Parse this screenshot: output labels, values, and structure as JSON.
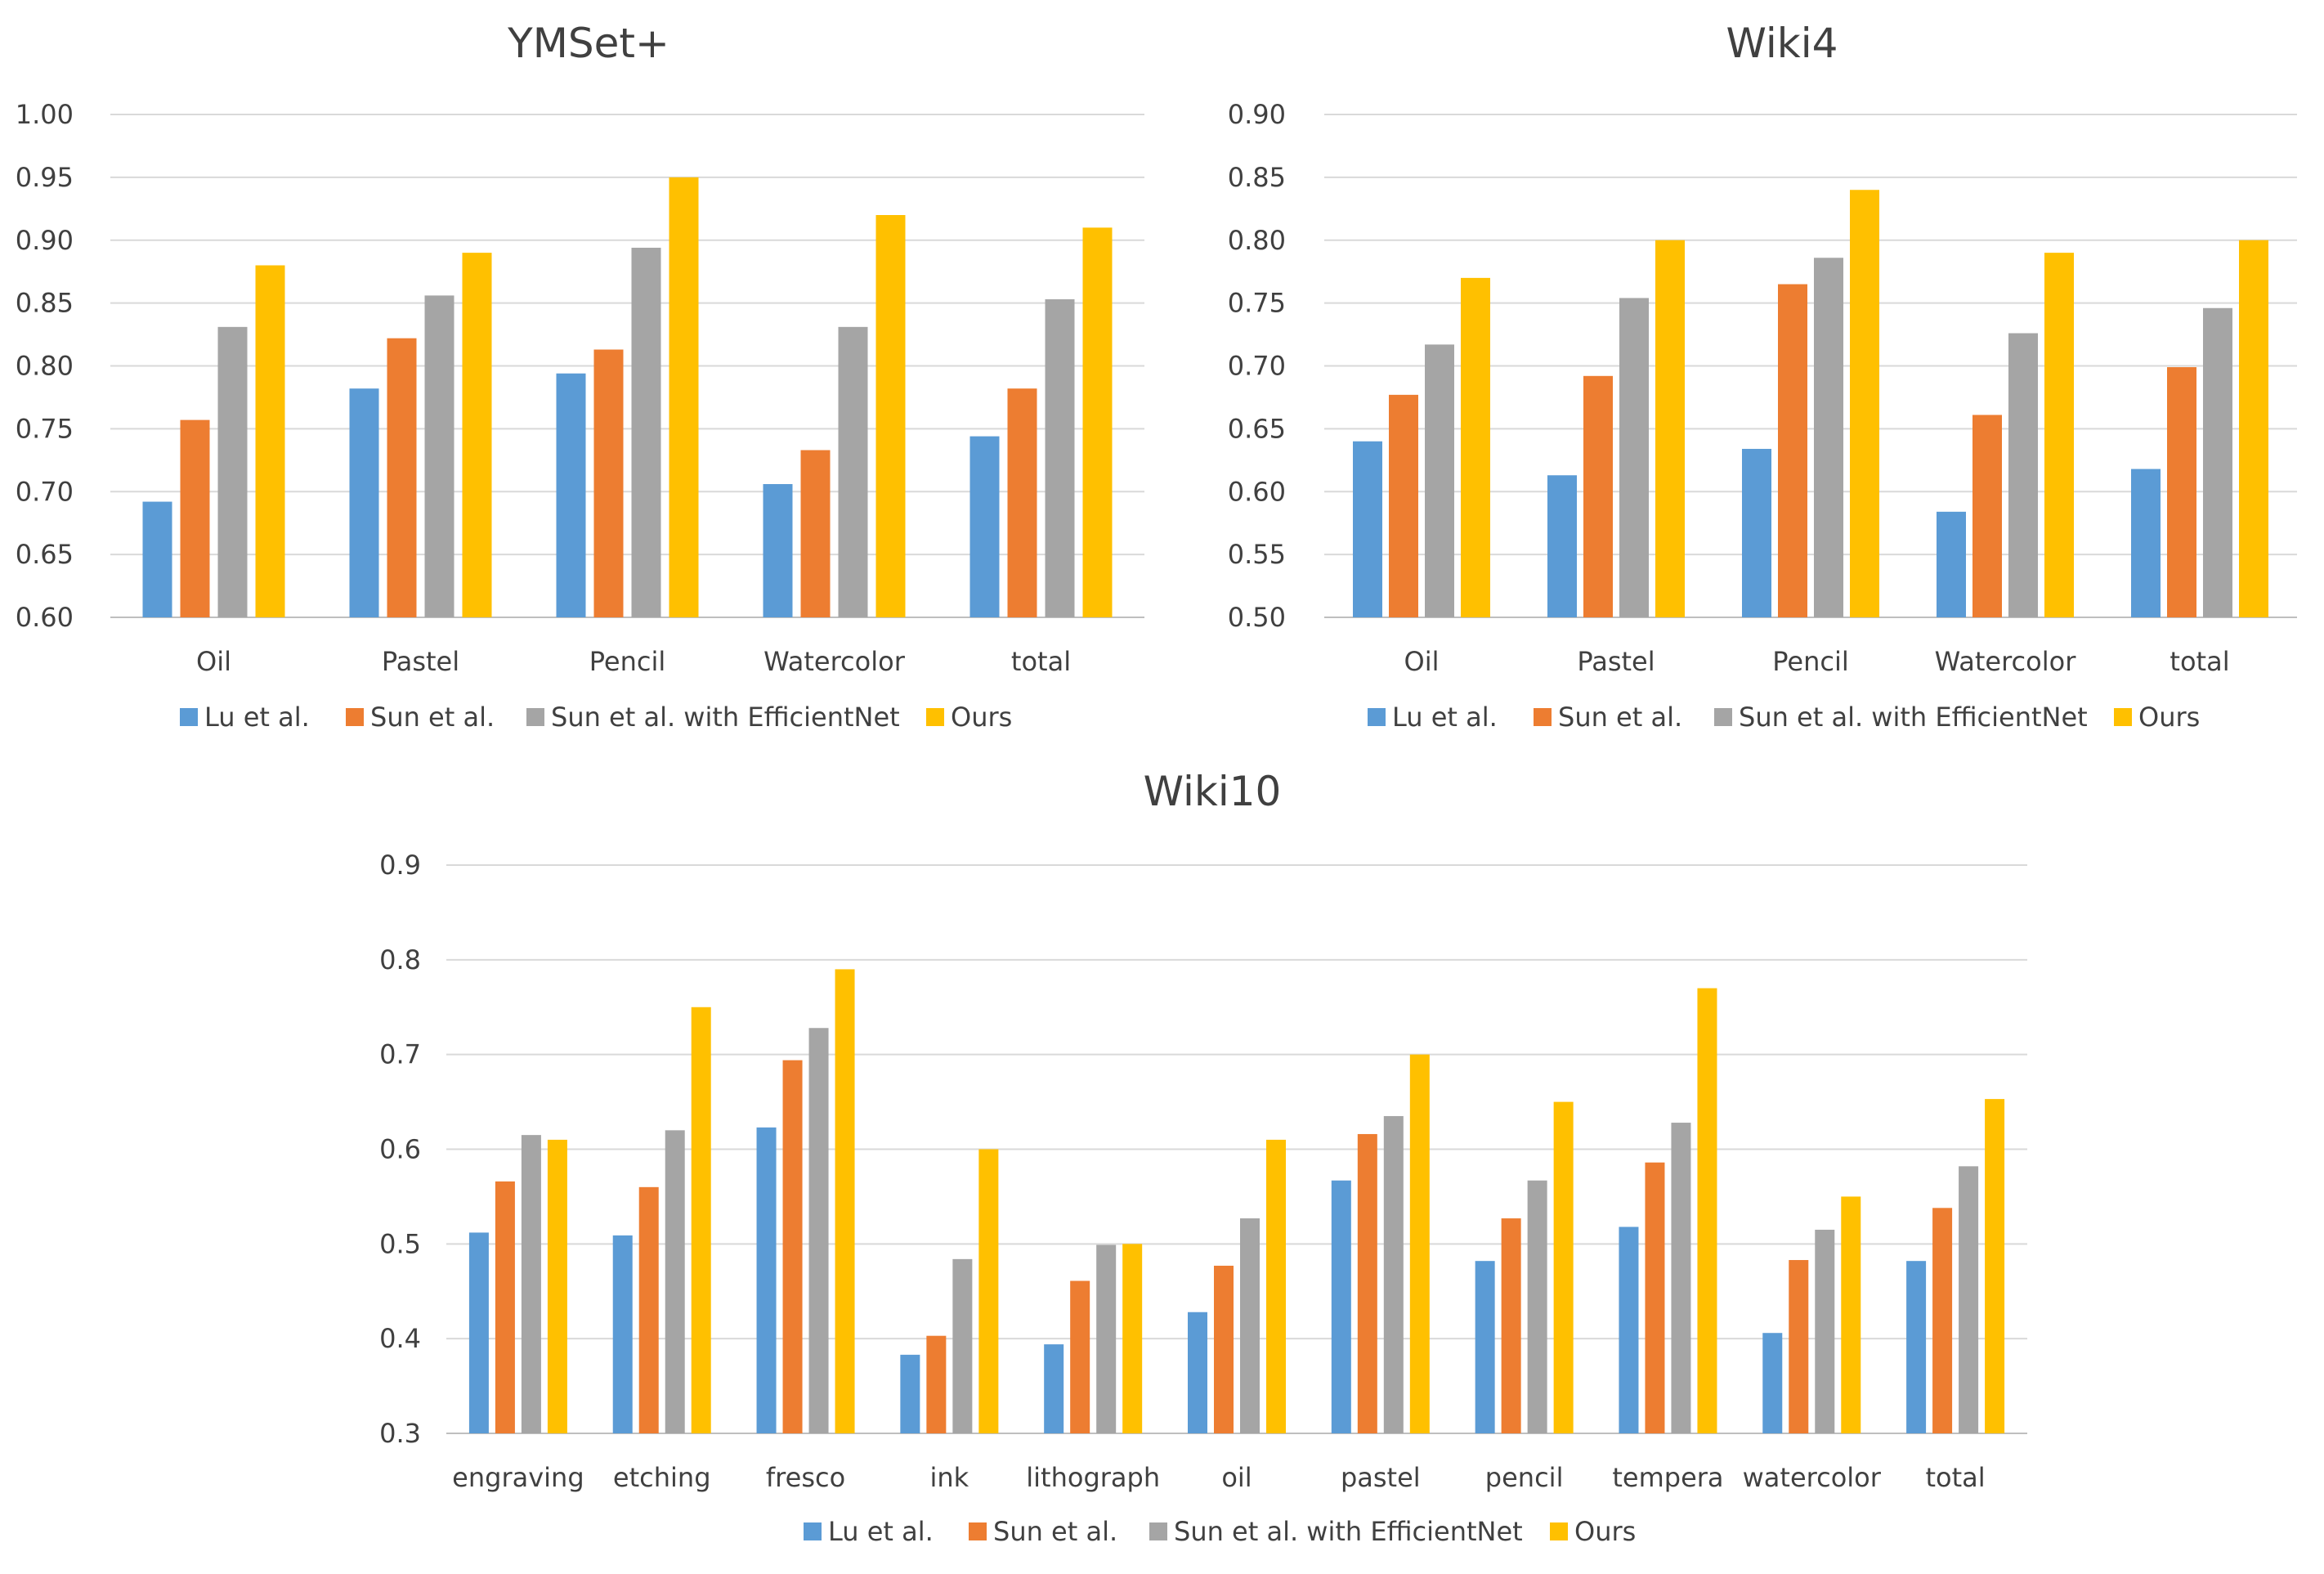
{
  "colors": {
    "lu": "#5b9bd5",
    "sun": "#ed7d31",
    "eff": "#a5a5a5",
    "ours": "#ffc000"
  },
  "legend": [
    "Lu et al.",
    "Sun et al.",
    "Sun et al. with EfficientNet",
    "Ours"
  ],
  "chart_data": [
    {
      "type": "bar",
      "title": "YMSet+",
      "categories": [
        "Oil",
        "Pastel",
        "Pencil",
        "Watercolor",
        "total"
      ],
      "ylim": [
        0.6,
        1.0
      ],
      "yticks": [
        "0.60",
        "0.65",
        "0.70",
        "0.75",
        "0.80",
        "0.85",
        "0.90",
        "0.95",
        "1.00"
      ],
      "series": [
        {
          "name": "Lu et al.",
          "values": [
            0.692,
            0.782,
            0.794,
            0.706,
            0.744
          ]
        },
        {
          "name": "Sun et al.",
          "values": [
            0.757,
            0.822,
            0.813,
            0.733,
            0.782
          ]
        },
        {
          "name": "Sun et al. with EfficientNet",
          "values": [
            0.831,
            0.856,
            0.894,
            0.831,
            0.853
          ]
        },
        {
          "name": "Ours",
          "values": [
            0.88,
            0.89,
            0.95,
            0.92,
            0.91
          ]
        }
      ]
    },
    {
      "type": "bar",
      "title": "Wiki4",
      "categories": [
        "Oil",
        "Pastel",
        "Pencil",
        "Watercolor",
        "total"
      ],
      "ylim": [
        0.5,
        0.9
      ],
      "yticks": [
        "0.50",
        "0.55",
        "0.60",
        "0.65",
        "0.70",
        "0.75",
        "0.80",
        "0.85",
        "0.90"
      ],
      "series": [
        {
          "name": "Lu et al.",
          "values": [
            0.64,
            0.613,
            0.634,
            0.584,
            0.618
          ]
        },
        {
          "name": "Sun et al.",
          "values": [
            0.677,
            0.692,
            0.765,
            0.661,
            0.699
          ]
        },
        {
          "name": "Sun et al. with EfficientNet",
          "values": [
            0.717,
            0.754,
            0.786,
            0.726,
            0.746
          ]
        },
        {
          "name": "Ours",
          "values": [
            0.77,
            0.8,
            0.84,
            0.79,
            0.8
          ]
        }
      ]
    },
    {
      "type": "bar",
      "title": "Wiki10",
      "categories": [
        "engraving",
        "etching",
        "fresco",
        "ink",
        "lithograph",
        "oil",
        "pastel",
        "pencil",
        "tempera",
        "watercolor",
        "total"
      ],
      "ylim": [
        0.3,
        0.9
      ],
      "yticks": [
        "0.3",
        "0.4",
        "0.5",
        "0.6",
        "0.7",
        "0.8",
        "0.9"
      ],
      "series": [
        {
          "name": "Lu et al.",
          "values": [
            0.512,
            0.509,
            0.623,
            0.383,
            0.394,
            0.428,
            0.567,
            0.482,
            0.518,
            0.406,
            0.482
          ]
        },
        {
          "name": "Sun et al.",
          "values": [
            0.566,
            0.56,
            0.694,
            0.403,
            0.461,
            0.477,
            0.616,
            0.527,
            0.586,
            0.483,
            0.538
          ]
        },
        {
          "name": "Sun et al. with EfficientNet",
          "values": [
            0.615,
            0.62,
            0.728,
            0.484,
            0.499,
            0.527,
            0.635,
            0.567,
            0.628,
            0.515,
            0.582
          ]
        },
        {
          "name": "Ours",
          "values": [
            0.61,
            0.75,
            0.79,
            0.6,
            0.5,
            0.61,
            0.7,
            0.65,
            0.77,
            0.55,
            0.653
          ]
        }
      ]
    }
  ]
}
